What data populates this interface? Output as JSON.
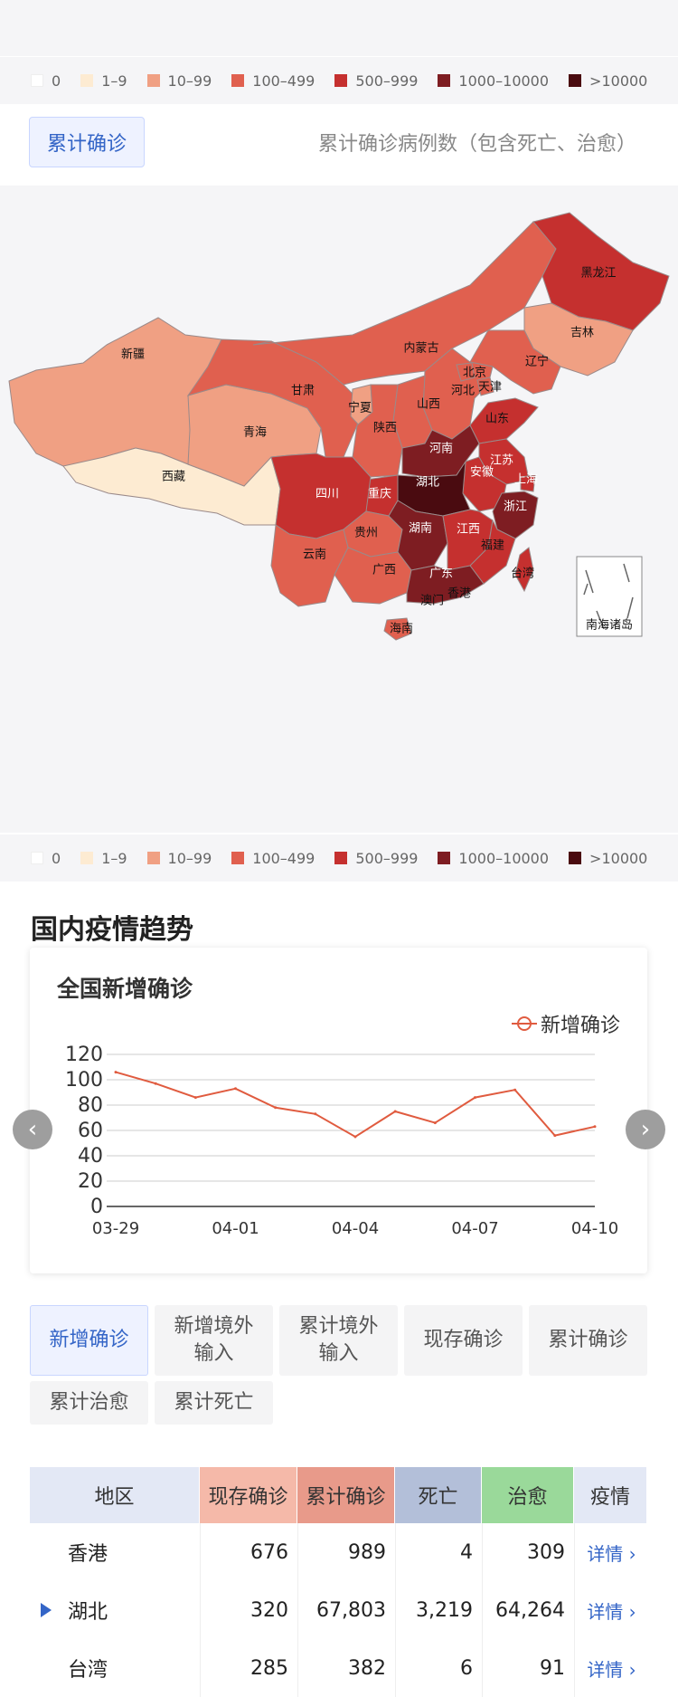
{
  "legend": [
    {
      "label": "0",
      "color": "#ffffff"
    },
    {
      "label": "1–9",
      "color": "#fdebd2"
    },
    {
      "label": "10–99",
      "color": "#f0a083"
    },
    {
      "label": "100–499",
      "color": "#e0604f"
    },
    {
      "label": "500–999",
      "color": "#c5302f"
    },
    {
      "label": "1000–10000",
      "color": "#7e1d22"
    },
    {
      "label": ">10000",
      "color": "#4a0b10"
    }
  ],
  "map_header": {
    "button_label": "累计确诊",
    "note": "累计确诊病例数（包含死亡、治愈）"
  },
  "map_labels": {
    "heilongjiang": "黑龙江",
    "jilin": "吉林",
    "liaoning": "辽宁",
    "neimenggu": "内蒙古",
    "beijing": "北京",
    "tianjin": "天津",
    "hebei": "河北",
    "shanxi": "山西",
    "shandong": "山东",
    "xinjiang": "新疆",
    "gansu": "甘肃",
    "ningxia": "宁夏",
    "shaanxi": "陕西",
    "qinghai": "青海",
    "xizang": "西藏",
    "henan": "河南",
    "jiangsu": "江苏",
    "anhui": "安徽",
    "shanghai": "上海",
    "hubei": "湖北",
    "sichuan": "四川",
    "chongqing": "重庆",
    "zhejiang": "浙江",
    "guizhou": "贵州",
    "hunan": "湖南",
    "jiangxi": "江西",
    "yunnan": "云南",
    "guangxi": "广西",
    "fujian": "福建",
    "guangdong": "广东",
    "taiwan": "台湾",
    "xianggang": "香港",
    "aomen": "澳门",
    "hainan": "海南",
    "nanhai": "南海诸岛"
  },
  "section_title": "国内疫情趋势",
  "chart_card": {
    "title": "全国新增确诊",
    "legend_label": "新增确诊"
  },
  "chart_data": {
    "type": "line",
    "title": "全国新增确诊",
    "x": [
      "03-29",
      "03-30",
      "03-31",
      "04-01",
      "04-02",
      "04-03",
      "04-04",
      "04-05",
      "04-06",
      "04-07",
      "04-08",
      "04-09",
      "04-10"
    ],
    "x_tick_labels": [
      "03-29",
      "04-01",
      "04-04",
      "04-07",
      "04-10"
    ],
    "series": [
      {
        "name": "新增确诊",
        "values": [
          106,
          97,
          86,
          93,
          78,
          73,
          55,
          75,
          66,
          86,
          92,
          56,
          63
        ],
        "color": "#e05b3f"
      }
    ],
    "y_ticks": [
      0,
      20,
      40,
      60,
      80,
      100,
      120
    ],
    "ylim": [
      0,
      120
    ],
    "grid": true,
    "legend_position": "top-right"
  },
  "nav": {
    "prev": "‹",
    "next": "›"
  },
  "tabs": [
    {
      "label": "新增确诊",
      "active": true
    },
    {
      "label": "新增境外\n输入",
      "active": false
    },
    {
      "label": "累计境外\n输入",
      "active": false
    },
    {
      "label": "现存确诊",
      "active": false
    },
    {
      "label": "累计确诊",
      "active": false
    },
    {
      "label": "累计治愈",
      "active": false
    },
    {
      "label": "累计死亡",
      "active": false
    }
  ],
  "table": {
    "headers": [
      "地区",
      "现存确诊",
      "累计确诊",
      "死亡",
      "治愈",
      "疫情"
    ],
    "header_colors": [
      "#e3e8f5",
      "#f5b9a9",
      "#e89a8a",
      "#b3bfd9",
      "#9ad99a",
      "#e3e8f5"
    ],
    "rows": [
      {
        "region": "香港",
        "current": "676",
        "total": "989",
        "deaths": "4",
        "cured": "309",
        "detail": "详情 ›",
        "expanded": false
      },
      {
        "region": "湖北",
        "current": "320",
        "total": "67,803",
        "deaths": "3,219",
        "cured": "64,264",
        "detail": "详情 ›",
        "expanded": true
      },
      {
        "region": "台湾",
        "current": "285",
        "total": "382",
        "deaths": "6",
        "cured": "91",
        "detail": "详情 ›",
        "expanded": false
      }
    ]
  }
}
